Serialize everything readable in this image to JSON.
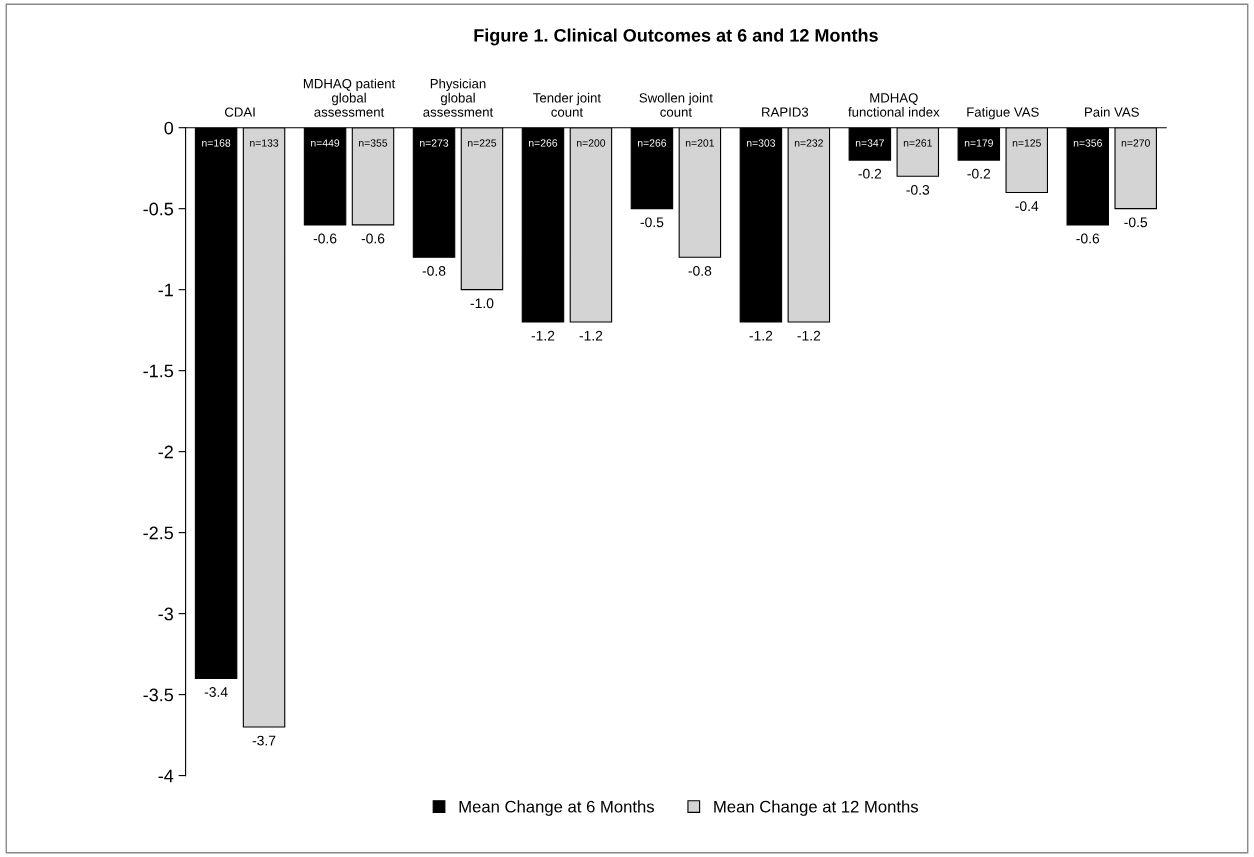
{
  "chart_data": {
    "type": "bar",
    "title": "Figure 1. Clinical Outcomes at 6 and 12 Months",
    "categories": [
      "CDAI",
      "MDHAQ patient\nglobal\nassessment",
      "Physician\nglobal\nassessment",
      "Tender joint\ncount",
      "Swollen joint\ncount",
      "RAPID3",
      "MDHAQ\nfunctional index",
      "Fatigue VAS",
      "Pain VAS"
    ],
    "series": [
      {
        "name": "Mean Change at 6 Months",
        "color": "#000000",
        "values": [
          -3.4,
          -0.6,
          -0.8,
          -1.2,
          -0.5,
          -1.2,
          -0.2,
          -0.2,
          -0.6
        ],
        "value_labels": [
          "-3.4",
          "-0.6",
          "-0.8",
          "-1.2",
          "-0.5",
          "-1.2",
          "-0.2",
          "-0.2",
          "-0.6"
        ]
      },
      {
        "name": "Mean Change at 12 Months",
        "color": "#d4d4d4",
        "values": [
          -3.7,
          -0.6,
          -1.0,
          -1.2,
          -0.8,
          -1.2,
          -0.3,
          -0.4,
          -0.5
        ],
        "value_labels": [
          "-3.7",
          "-0.6",
          "-1.0",
          "-1.2",
          "-0.8",
          "-1.2",
          "-0.3",
          "-0.4",
          "-0.5"
        ]
      }
    ],
    "annotations": [
      "n=168",
      "n=133",
      "n=449",
      "n=355",
      "n=273",
      "n=225",
      "n=266",
      "n=200",
      "n=266",
      "n=201",
      "n=303",
      "n=232",
      "n=347",
      "n=261",
      "n=179",
      "n=125",
      "n=356",
      "n=270"
    ],
    "ylim": [
      -4,
      0
    ],
    "yticks": [
      0,
      -0.5,
      -1,
      -1.5,
      -2,
      -2.5,
      -3,
      -3.5,
      -4
    ],
    "legend": "bottom",
    "grid": false
  }
}
